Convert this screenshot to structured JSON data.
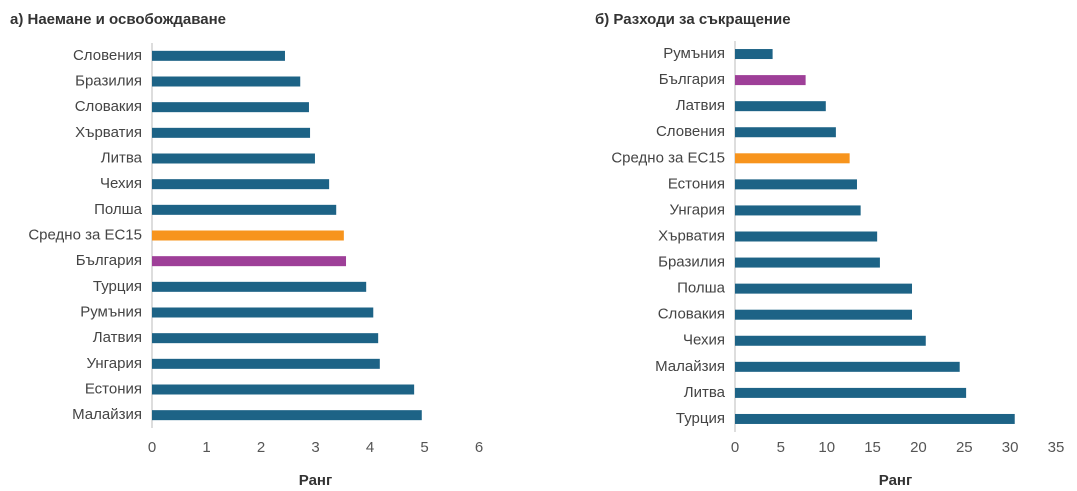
{
  "chart_data": [
    {
      "type": "barh",
      "title": "а) Наемане и освобождаване",
      "x_label": "Ранг",
      "categories": [
        "Словения",
        "Бразилия",
        "Словакия",
        "Хърватия",
        "Литва",
        "Чехия",
        "Полша",
        "Средно за ЕС15",
        "България",
        "Турция",
        "Румъния",
        "Латвия",
        "Унгария",
        "Естония",
        "Малайзия"
      ],
      "values": [
        2.44,
        2.72,
        2.88,
        2.9,
        2.99,
        3.25,
        3.38,
        3.52,
        3.56,
        3.93,
        4.06,
        4.15,
        4.18,
        4.81,
        4.95
      ],
      "colors": [
        "#1d6386",
        "#1d6386",
        "#1d6386",
        "#1d6386",
        "#1d6386",
        "#1d6386",
        "#1d6386",
        "#f7941d",
        "#9e3f98",
        "#1d6386",
        "#1d6386",
        "#1d6386",
        "#1d6386",
        "#1d6386",
        "#1d6386"
      ],
      "xlim": [
        0,
        6
      ],
      "xticks": [
        0,
        1,
        2,
        3,
        4,
        5,
        6
      ]
    },
    {
      "type": "barh",
      "title": "б) Разходи за съкращение",
      "x_label": "Ранг",
      "categories": [
        "Румъния",
        "България",
        "Латвия",
        "Словения",
        "Средно за ЕС15",
        "Естония",
        "Унгария",
        "Хърватия",
        "Бразилия",
        "Полша",
        "Словакия",
        "Чехия",
        "Малайзия",
        "Литва",
        "Турция"
      ],
      "values": [
        4.1,
        7.7,
        9.9,
        11.0,
        12.5,
        13.3,
        13.7,
        15.5,
        15.8,
        19.3,
        19.3,
        20.8,
        24.5,
        25.2,
        30.5
      ],
      "colors": [
        "#1d6386",
        "#9e3f98",
        "#1d6386",
        "#1d6386",
        "#f7941d",
        "#1d6386",
        "#1d6386",
        "#1d6386",
        "#1d6386",
        "#1d6386",
        "#1d6386",
        "#1d6386",
        "#1d6386",
        "#1d6386",
        "#1d6386"
      ],
      "xlim": [
        0,
        35
      ],
      "xticks": [
        0,
        5,
        10,
        15,
        20,
        25,
        30,
        35
      ]
    }
  ]
}
